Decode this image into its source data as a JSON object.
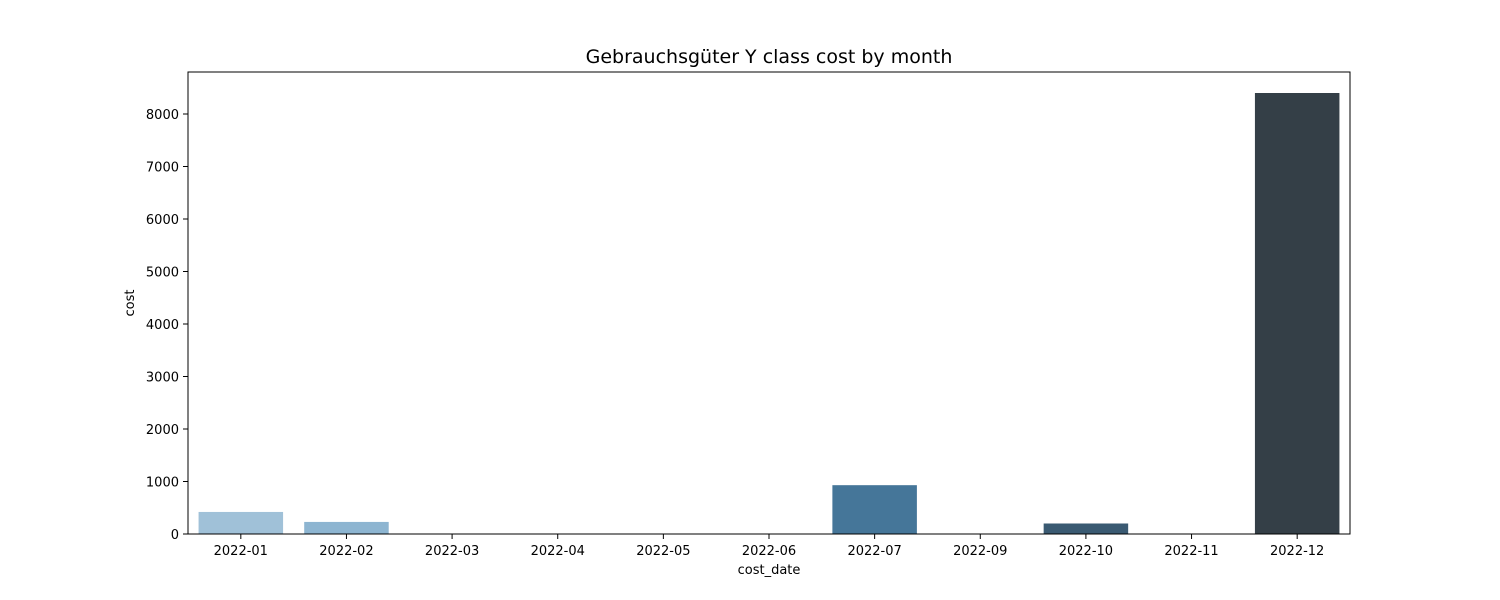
{
  "chart_data": {
    "type": "bar",
    "title": "Gebrauchsgüter Y class cost by month",
    "xlabel": "cost_date",
    "ylabel": "cost",
    "categories": [
      "2022-01",
      "2022-02",
      "2022-03",
      "2022-04",
      "2022-05",
      "2022-06",
      "2022-07",
      "2022-09",
      "2022-10",
      "2022-11",
      "2022-12"
    ],
    "values": [
      420,
      230,
      8,
      5,
      5,
      5,
      930,
      8,
      200,
      5,
      8400
    ],
    "colors": [
      "#a0c1d8",
      "#8db5d1",
      "#7aa8ca",
      "#689bbf",
      "#588db2",
      "#4d81a5",
      "#457699",
      "#3f6887",
      "#3a5a72",
      "#36505f",
      "#343f47"
    ],
    "yticks": [
      0,
      1000,
      2000,
      3000,
      4000,
      5000,
      6000,
      7000,
      8000
    ],
    "ylim": [
      0,
      8800
    ],
    "grid": false,
    "legend": "none"
  }
}
